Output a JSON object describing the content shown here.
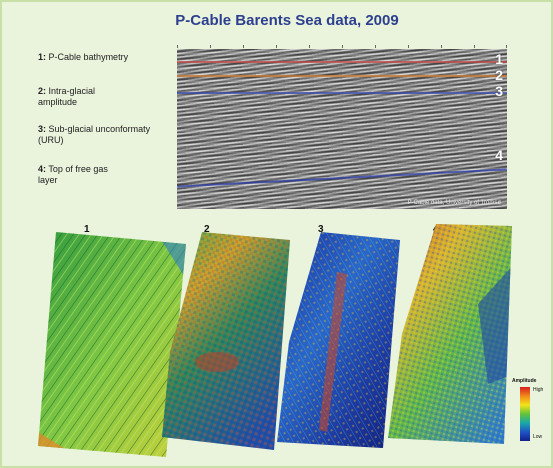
{
  "title": "P-Cable Barents Sea data, 2009",
  "legend": [
    {
      "num": "1",
      "text": "P-Cable bathymetry"
    },
    {
      "num": "2",
      "text": "Intra-glacial amplitude"
    },
    {
      "num": "3",
      "text": "Sub-glacial unconformaty (URU)"
    },
    {
      "num": "4",
      "text": "Top of free gas layer"
    }
  ],
  "seismic": {
    "horizon_labels": [
      "1",
      "2",
      "3",
      "4"
    ],
    "credit": "P-Cable data, University of Tromsø"
  },
  "panels": [
    {
      "label": "1",
      "palette": "green"
    },
    {
      "label": "2",
      "palette": "mixed"
    },
    {
      "label": "3",
      "palette": "blue"
    },
    {
      "label": "4",
      "palette": "multi"
    }
  ],
  "colorbar": {
    "title": "Amplitude",
    "high": "High",
    "low": "Low"
  },
  "colors": {
    "frame_border": "#c9dfa8",
    "frame_background": "#eaf3dc",
    "title": "#2d3f8f"
  }
}
